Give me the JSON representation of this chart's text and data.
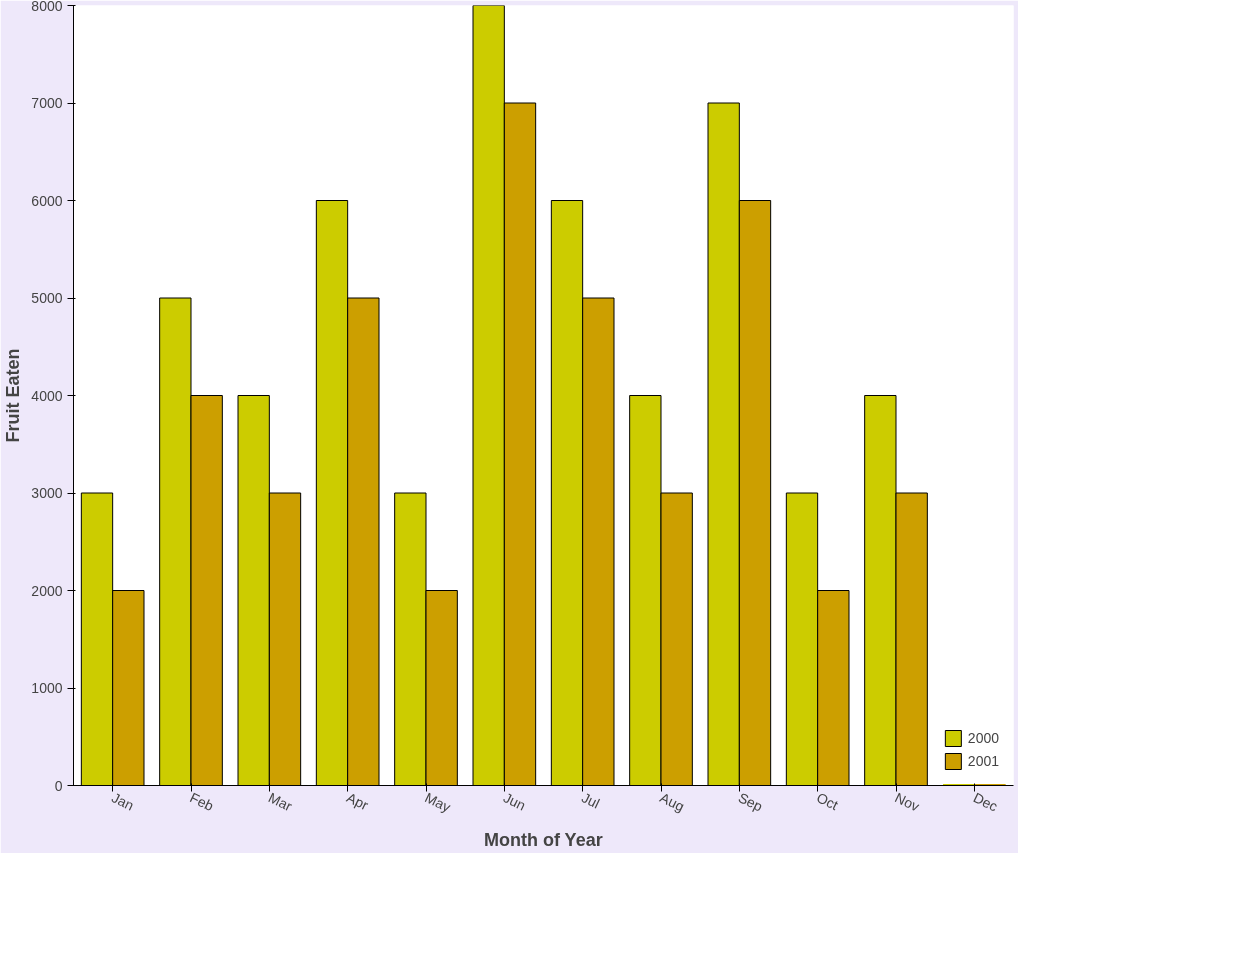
{
  "chart_data": {
    "type": "bar",
    "xlabel": "Month of Year",
    "ylabel": "Fruit Eaten",
    "categories": [
      "Jan",
      "Feb",
      "Mar",
      "Apr",
      "May",
      "Jun",
      "Jul",
      "Aug",
      "Sep",
      "Oct",
      "Nov",
      "Dec"
    ],
    "series": [
      {
        "name": "2000",
        "color": "#cccc00",
        "values": [
          3000,
          5000,
          4000,
          6000,
          3000,
          8000,
          6000,
          4000,
          7000,
          3000,
          4000,
          0
        ]
      },
      {
        "name": "2001",
        "color": "#cc9f00",
        "values": [
          2000,
          4000,
          3000,
          5000,
          2000,
          7000,
          5000,
          3000,
          6000,
          2000,
          3000,
          0
        ]
      }
    ],
    "ylim": [
      0,
      8000
    ],
    "yticks": [
      0,
      1000,
      2000,
      3000,
      4000,
      5000,
      6000,
      7000,
      8000
    ],
    "grid": false,
    "legend": "bottom right"
  }
}
